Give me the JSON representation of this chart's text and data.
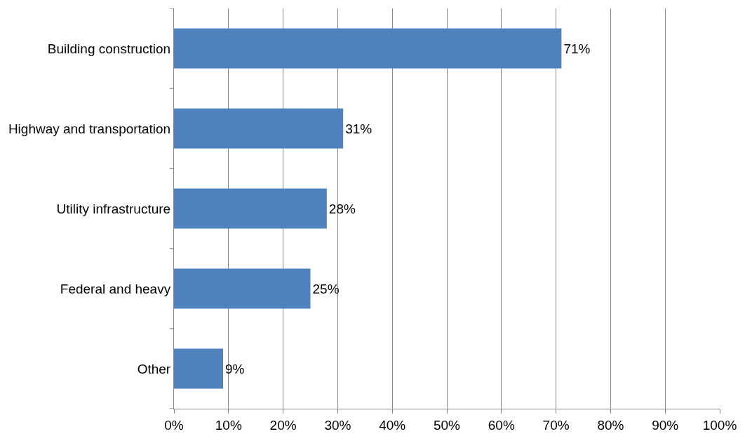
{
  "chart_data": {
    "type": "bar",
    "orientation": "horizontal",
    "categories": [
      "Building construction",
      "Highway and transportation",
      "Utility infrastructure",
      "Federal and heavy",
      "Other"
    ],
    "values": [
      71,
      31,
      28,
      25,
      9
    ],
    "value_labels": [
      "71%",
      "31%",
      "28%",
      "25%",
      "9%"
    ],
    "color": "#4f81bd",
    "xlim": [
      0,
      100
    ],
    "xticks": [
      {
        "value": 0,
        "label": "0%"
      },
      {
        "value": 10,
        "label": "10%"
      },
      {
        "value": 20,
        "label": "20%"
      },
      {
        "value": 30,
        "label": "30%"
      },
      {
        "value": 40,
        "label": "40%"
      },
      {
        "value": 50,
        "label": "50%"
      },
      {
        "value": 60,
        "label": "60%"
      },
      {
        "value": 70,
        "label": "70%"
      },
      {
        "value": 80,
        "label": "80%"
      },
      {
        "value": 90,
        "label": "90%"
      },
      {
        "value": 100,
        "label": "100%"
      }
    ],
    "grid": "x",
    "legend": false
  }
}
